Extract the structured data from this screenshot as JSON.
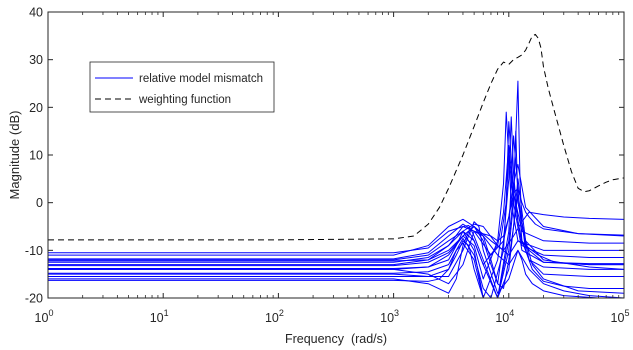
{
  "chart_data": {
    "type": "line",
    "title": "",
    "xlabel": "Frequency  (rad/s)",
    "ylabel": "Magnitude (dB)",
    "x_scale": "log",
    "xlim": [
      1,
      100000
    ],
    "ylim": [
      -20,
      40
    ],
    "x_ticks": [
      {
        "value": 1,
        "base": "10",
        "exp": "0"
      },
      {
        "value": 10,
        "base": "10",
        "exp": "1"
      },
      {
        "value": 100,
        "base": "10",
        "exp": "2"
      },
      {
        "value": 1000,
        "base": "10",
        "exp": "3"
      },
      {
        "value": 10000,
        "base": "10",
        "exp": "4"
      },
      {
        "value": 100000,
        "base": "10",
        "exp": "5"
      }
    ],
    "y_ticks": [
      -20,
      -10,
      0,
      10,
      20,
      30,
      40
    ],
    "grid": false,
    "legend_position": "top-left",
    "legend": [
      {
        "label": "relative model mismatch",
        "style": "solid",
        "color": "#0000ff"
      },
      {
        "label": "weighting function",
        "style": "dashed",
        "color": "#000000"
      }
    ],
    "series": [
      {
        "style": "dashed",
        "color": "#000000",
        "x": [
          1,
          10,
          100,
          1000,
          1500,
          2000,
          2500,
          3000,
          4000,
          5000,
          6000,
          7000,
          8000,
          9000,
          10000,
          11000,
          12000,
          13000,
          14000,
          15000,
          16000,
          17000,
          18000,
          19000,
          20000,
          22000,
          25000,
          30000,
          35000,
          40000,
          45000,
          50000,
          60000,
          70000,
          80000,
          100000
        ],
        "y": [
          -7.8,
          -7.8,
          -7.8,
          -7.6,
          -7,
          -4.5,
          -1,
          3,
          10,
          16,
          21,
          25,
          28,
          29.5,
          29,
          30,
          30.5,
          31,
          32,
          33.5,
          35,
          35.3,
          34.5,
          32.5,
          28.5,
          24,
          19,
          12,
          6.5,
          3,
          2.3,
          2.5,
          3.5,
          4.3,
          4.8,
          5.2
        ]
      },
      {
        "style": "solid",
        "color": "#0000ff",
        "x": [
          1,
          1000,
          2000,
          3000,
          4000,
          5000,
          7000,
          9000,
          11000,
          13000,
          15000,
          20000,
          30000,
          50000,
          100000
        ],
        "y": [
          -11,
          -11,
          -9,
          -5,
          -3.5,
          -5,
          -8,
          -10,
          -7,
          -4,
          -2,
          -2.5,
          -3,
          -3.3,
          -3.5
        ]
      },
      {
        "style": "solid",
        "color": "#0000ff",
        "x": [
          1,
          1000,
          2000,
          3000,
          4000,
          5000,
          7000,
          9000,
          10000,
          11000,
          12000,
          14000,
          20000,
          40000,
          100000
        ],
        "y": [
          -11.8,
          -11.8,
          -10.5,
          -7,
          -4.5,
          -6,
          -11,
          -8,
          -3,
          4,
          8,
          -1,
          -5,
          -6.5,
          -7
        ]
      },
      {
        "style": "solid",
        "color": "#0000ff",
        "x": [
          1,
          1000,
          2000,
          3000,
          4000,
          5000,
          6000,
          8000,
          9000,
          10000,
          11000,
          13000,
          20000,
          50000,
          100000
        ],
        "y": [
          -12.5,
          -12.5,
          -11.5,
          -9,
          -6,
          -8,
          -13,
          -9,
          -2,
          12,
          2,
          -6,
          -8,
          -8.5,
          -8.5
        ]
      },
      {
        "style": "solid",
        "color": "#0000ff",
        "x": [
          1,
          1000,
          2000,
          3000,
          4000,
          5000,
          6000,
          8000,
          9000,
          9500,
          10500,
          12000,
          20000,
          50000,
          100000
        ],
        "y": [
          -13.2,
          -13.2,
          -12.5,
          -10.5,
          -7,
          -9,
          -16,
          -8,
          4,
          19,
          0,
          -8,
          -10,
          -10,
          -10
        ]
      },
      {
        "style": "solid",
        "color": "#0000ff",
        "x": [
          1,
          1000,
          2000,
          3000,
          3500,
          4000,
          5000,
          6000,
          8000,
          9500,
          10000,
          11000,
          13000,
          20000,
          50000,
          100000
        ],
        "y": [
          -14,
          -14,
          -13.5,
          -12,
          -9,
          -6,
          -10,
          -20,
          -12,
          0,
          17,
          2,
          -9,
          -11,
          -11.5,
          -11.5
        ]
      },
      {
        "style": "solid",
        "color": "#0000ff",
        "x": [
          1,
          1000,
          2000,
          3000,
          3500,
          4000,
          5000,
          6000,
          7000,
          9000,
          10000,
          11000,
          13000,
          20000,
          50000,
          100000
        ],
        "y": [
          -14.8,
          -14.8,
          -14.5,
          -13,
          -10,
          -7.5,
          -11,
          -18,
          -20,
          -10,
          10,
          0,
          -10,
          -12.5,
          -12.8,
          -12.8
        ]
      },
      {
        "style": "solid",
        "color": "#0000ff",
        "x": [
          1,
          1000,
          2000,
          3000,
          3500,
          4000,
          4500,
          5000,
          6000,
          8000,
          10000,
          11000,
          12000,
          13000,
          15000,
          20000,
          50000,
          100000
        ],
        "y": [
          -15.5,
          -15.5,
          -15.5,
          -14,
          -11,
          -8,
          -9,
          -14,
          -20,
          -20,
          -6,
          14,
          3,
          -8,
          -12,
          -13.5,
          -14,
          -14
        ]
      },
      {
        "style": "solid",
        "color": "#0000ff",
        "x": [
          1,
          1000,
          2000,
          2500,
          3000,
          3500,
          4000,
          5000,
          6000,
          8000,
          10000,
          11000,
          12000,
          12500,
          13000,
          15000,
          20000,
          50000,
          100000
        ],
        "y": [
          -16.3,
          -16.3,
          -16.5,
          -16,
          -14,
          -10,
          -8.5,
          -12,
          -20,
          -20,
          -8,
          2,
          25.5,
          5,
          -5,
          -12,
          -15,
          -15.5,
          -15.5
        ]
      },
      {
        "style": "solid",
        "color": "#0000ff",
        "x": [
          1,
          1000,
          2000,
          3000,
          4000,
          5000,
          6000,
          7000,
          8000,
          9000,
          10000,
          11000,
          12000,
          13000,
          14000,
          16000,
          20000,
          30000,
          50000,
          100000
        ],
        "y": [
          -14,
          -14,
          -15,
          -17,
          -13,
          -6,
          -7,
          -12,
          -17,
          -18,
          -12,
          -5,
          2,
          -4,
          -10,
          -14,
          -16.5,
          -17.5,
          -18,
          -18
        ]
      },
      {
        "style": "solid",
        "color": "#0000ff",
        "x": [
          1,
          1000,
          2000,
          3000,
          4000,
          5000,
          6000,
          8000,
          10000,
          12000,
          14000,
          18000,
          25000,
          50000,
          100000
        ],
        "y": [
          -12,
          -12,
          -11,
          -8,
          -6,
          -4.5,
          -5,
          -9,
          -11,
          -8,
          -9,
          -11,
          -12.5,
          -13,
          -13
        ]
      },
      {
        "style": "solid",
        "color": "#0000ff",
        "x": [
          1,
          1000,
          2000,
          3000,
          4000,
          4500,
          5000,
          6000,
          8000,
          10000,
          11000,
          12000,
          14000,
          16000,
          20000,
          40000,
          100000
        ],
        "y": [
          -13,
          -13,
          -12,
          -9,
          -5,
          -4.8,
          -7,
          -12,
          -20,
          -14,
          -5,
          5,
          -8,
          -13,
          -16,
          -18.5,
          -19
        ]
      },
      {
        "style": "solid",
        "color": "#0000ff",
        "x": [
          1,
          1000,
          2000,
          3000,
          4000,
          5000,
          5500,
          6000,
          8000,
          10000,
          12000,
          15000,
          20000,
          30000,
          50000,
          100000
        ],
        "y": [
          -15,
          -15,
          -15.5,
          -15.5,
          -10,
          -4,
          -5,
          -10,
          -19,
          -16,
          -10,
          -14,
          -17,
          -18.5,
          -19.5,
          -20
        ]
      },
      {
        "style": "solid",
        "color": "#0000ff",
        "x": [
          1,
          1000,
          2000,
          3000,
          3500,
          4000,
          4500,
          5000,
          6000,
          8000,
          10000,
          11000,
          11500,
          12000,
          14000,
          20000,
          50000,
          100000
        ],
        "y": [
          -16,
          -16,
          -17,
          -19,
          -16,
          -9,
          -6,
          -8,
          -13,
          -20,
          -10,
          0,
          15,
          0,
          -8,
          -12,
          -13.5,
          -14
        ]
      },
      {
        "style": "solid",
        "color": "#0000ff",
        "x": [
          1,
          1000,
          2000,
          3000,
          4000,
          5000,
          7000,
          8000,
          9000,
          10000,
          11000,
          12000,
          13000,
          14000,
          15000,
          17000,
          20000,
          40000,
          100000
        ],
        "y": [
          -10.5,
          -10.5,
          -9.5,
          -6,
          -5,
          -6,
          -7,
          -8,
          -7,
          -3,
          2,
          3,
          0,
          -2,
          -3,
          -4.5,
          -5.5,
          -6.5,
          -6.8
        ]
      },
      {
        "style": "solid",
        "color": "#0000ff",
        "x": [
          1,
          1000,
          2000,
          3000,
          4000,
          5000,
          6000,
          7000,
          8000,
          9000,
          10000,
          10500,
          11000,
          12000,
          13000,
          15000,
          20000,
          50000,
          100000
        ],
        "y": [
          -12.2,
          -12.2,
          -12,
          -10,
          -7,
          -5,
          -8,
          -13,
          -17,
          -8,
          5,
          18,
          6,
          -4,
          -8,
          -10,
          -12.5,
          -13,
          -13
        ]
      },
      {
        "style": "solid",
        "color": "#0000ff",
        "x": [
          1,
          1000,
          2000,
          3000,
          4000,
          5000,
          6000,
          8000,
          10000,
          12000,
          13000,
          14000,
          16000,
          20000,
          30000,
          60000,
          100000
        ],
        "y": [
          -13.8,
          -13.8,
          -13.5,
          -11,
          -7,
          -5,
          -7,
          -11,
          -13,
          -10,
          -12,
          -15,
          -17,
          -18.5,
          -19.5,
          -20,
          -20
        ]
      }
    ]
  }
}
